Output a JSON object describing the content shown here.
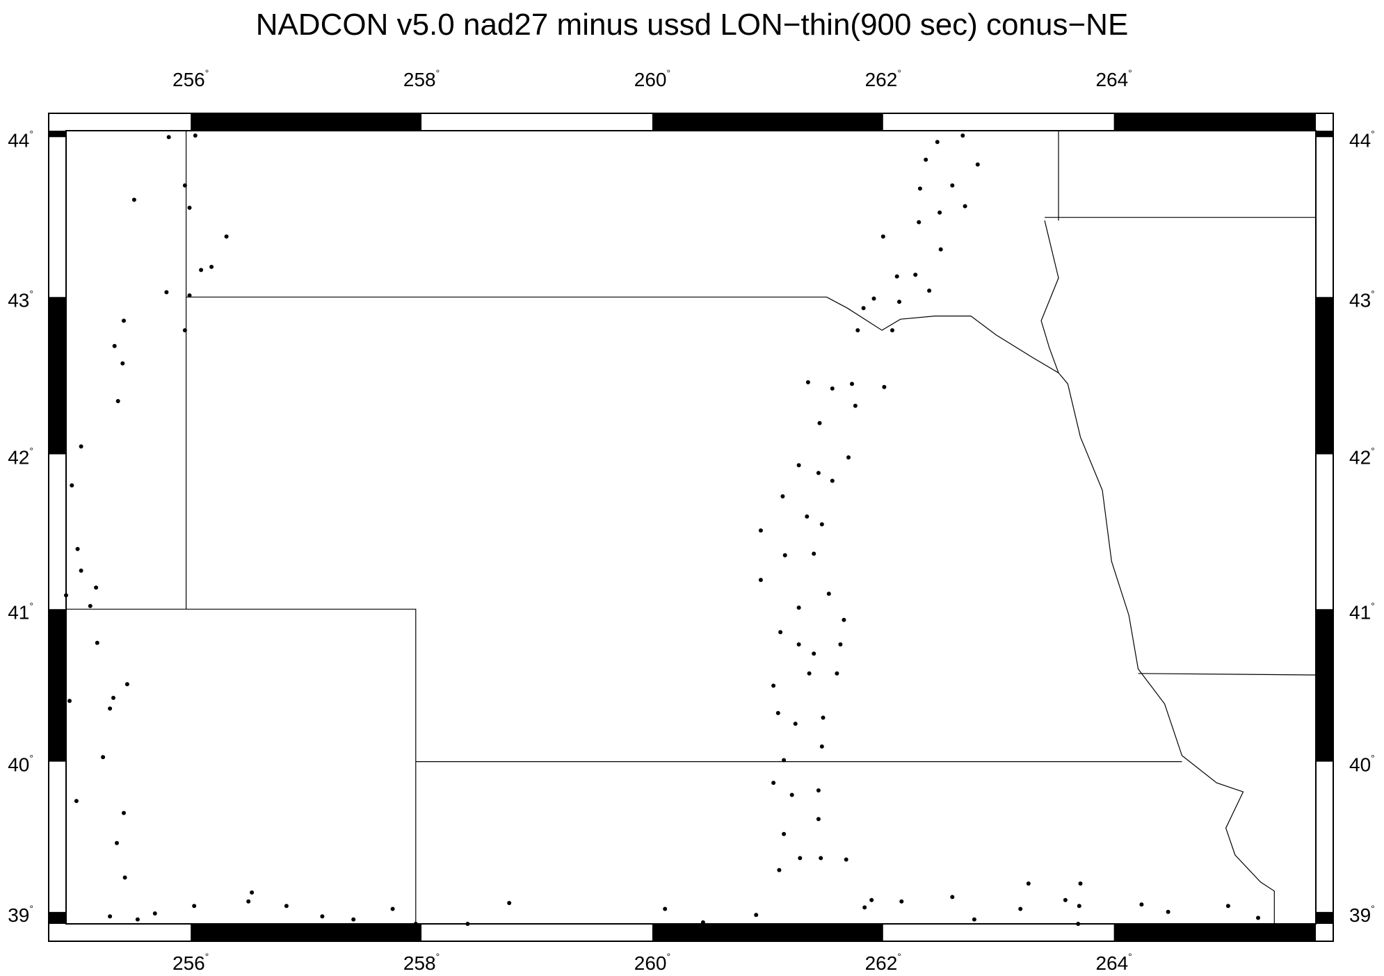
{
  "title": "NADCON v5.0 nad27 minus ussd LON−thin(900 sec) conus−NE",
  "map": {
    "projection": "mercator",
    "lon_range": [
      254.92,
      265.75
    ],
    "lat_range": [
      38.92,
      44.04
    ],
    "lon_ticks": [
      256,
      258,
      260,
      262,
      264
    ],
    "lon_tick_labels": [
      "256",
      "258",
      "260",
      "262",
      "264"
    ],
    "lat_ticks": [
      39,
      40,
      41,
      42,
      43,
      44
    ],
    "lat_tick_labels": [
      "39",
      "40",
      "41",
      "42",
      "43",
      "44"
    ],
    "degree_symbol": "°",
    "frame_lon_interval": 2,
    "frame_lat_interval": 1,
    "colors": {
      "points": "#000000",
      "boundaries": "#000000",
      "frame": "#000000"
    },
    "boundaries": [
      [
        [
          255.96,
          44.04
        ],
        [
          255.96,
          41.0
        ]
      ],
      [
        [
          255.96,
          43.0
        ],
        [
          261.51,
          43.0
        ]
      ],
      [
        [
          254.92,
          41.0
        ],
        [
          257.95,
          41.0
        ],
        [
          257.95,
          38.92
        ]
      ],
      [
        [
          257.95,
          40.0
        ],
        [
          264.59,
          40.0
        ]
      ],
      [
        [
          263.52,
          44.04
        ],
        [
          263.52,
          43.48
        ]
      ],
      [
        [
          263.4,
          43.5
        ],
        [
          265.75,
          43.5
        ]
      ],
      [
        [
          264.21,
          40.58
        ],
        [
          265.75,
          40.57
        ]
      ],
      [
        [
          263.52,
          42.52
        ],
        [
          263.44,
          42.68
        ],
        [
          263.37,
          42.85
        ],
        [
          263.52,
          43.12
        ],
        [
          263.4,
          43.48
        ]
      ],
      [
        [
          261.51,
          43.0
        ],
        [
          261.69,
          42.93
        ],
        [
          261.99,
          42.79
        ],
        [
          262.15,
          42.86
        ],
        [
          262.45,
          42.88
        ],
        [
          262.76,
          42.88
        ],
        [
          262.98,
          42.76
        ],
        [
          263.29,
          42.62
        ],
        [
          263.52,
          42.52
        ],
        [
          263.6,
          42.45
        ],
        [
          263.71,
          42.11
        ],
        [
          263.9,
          41.77
        ],
        [
          263.98,
          41.31
        ],
        [
          264.13,
          40.96
        ],
        [
          264.21,
          40.61
        ],
        [
          264.44,
          40.38
        ],
        [
          264.59,
          40.04
        ],
        [
          264.89,
          39.86
        ],
        [
          265.12,
          39.8
        ],
        [
          264.97,
          39.56
        ],
        [
          265.05,
          39.38
        ],
        [
          265.27,
          39.2
        ],
        [
          265.39,
          39.14
        ],
        [
          265.39,
          38.92
        ]
      ]
    ],
    "points": [
      [
        255.81,
        44.0
      ],
      [
        256.04,
        44.01
      ],
      [
        255.95,
        43.7
      ],
      [
        255.99,
        43.56
      ],
      [
        255.51,
        43.61
      ],
      [
        256.31,
        43.38
      ],
      [
        256.09,
        43.17
      ],
      [
        256.18,
        43.19
      ],
      [
        255.79,
        43.03
      ],
      [
        255.99,
        43.01
      ],
      [
        255.95,
        42.79
      ],
      [
        255.42,
        42.85
      ],
      [
        255.34,
        42.69
      ],
      [
        255.41,
        42.58
      ],
      [
        255.37,
        42.34
      ],
      [
        255.05,
        42.05
      ],
      [
        254.97,
        41.8
      ],
      [
        255.02,
        41.39
      ],
      [
        255.05,
        41.25
      ],
      [
        255.18,
        41.14
      ],
      [
        255.13,
        41.02
      ],
      [
        254.92,
        41.09
      ],
      [
        255.19,
        40.78
      ],
      [
        255.45,
        40.51
      ],
      [
        255.33,
        40.42
      ],
      [
        255.3,
        40.35
      ],
      [
        254.95,
        40.4
      ],
      [
        255.24,
        40.03
      ],
      [
        255.01,
        39.74
      ],
      [
        255.42,
        39.66
      ],
      [
        255.36,
        39.46
      ],
      [
        255.43,
        39.23
      ],
      [
        255.3,
        38.97
      ],
      [
        255.54,
        38.95
      ],
      [
        255.69,
        38.99
      ],
      [
        256.03,
        39.04
      ],
      [
        256.5,
        39.07
      ],
      [
        256.53,
        39.13
      ],
      [
        256.83,
        39.04
      ],
      [
        257.14,
        38.97
      ],
      [
        257.41,
        38.95
      ],
      [
        257.75,
        39.02
      ],
      [
        257.95,
        38.92
      ],
      [
        258.4,
        38.92
      ],
      [
        258.76,
        39.06
      ],
      [
        260.11,
        39.02
      ],
      [
        260.44,
        38.93
      ],
      [
        260.9,
        38.98
      ],
      [
        261.35,
        42.46
      ],
      [
        261.56,
        42.42
      ],
      [
        261.73,
        42.45
      ],
      [
        261.76,
        42.31
      ],
      [
        261.45,
        42.2
      ],
      [
        261.7,
        41.98
      ],
      [
        261.27,
        41.93
      ],
      [
        261.44,
        41.88
      ],
      [
        261.56,
        41.83
      ],
      [
        261.13,
        41.73
      ],
      [
        260.94,
        41.51
      ],
      [
        261.34,
        41.6
      ],
      [
        261.47,
        41.55
      ],
      [
        261.15,
        41.35
      ],
      [
        261.4,
        41.36
      ],
      [
        260.94,
        41.19
      ],
      [
        261.53,
        41.1
      ],
      [
        261.27,
        41.01
      ],
      [
        261.66,
        40.93
      ],
      [
        261.11,
        40.85
      ],
      [
        261.27,
        40.77
      ],
      [
        261.4,
        40.71
      ],
      [
        261.63,
        40.77
      ],
      [
        261.36,
        40.58
      ],
      [
        261.6,
        40.58
      ],
      [
        261.05,
        40.5
      ],
      [
        261.09,
        40.32
      ],
      [
        261.24,
        40.25
      ],
      [
        261.48,
        40.29
      ],
      [
        261.47,
        40.1
      ],
      [
        261.14,
        40.01
      ],
      [
        261.05,
        39.86
      ],
      [
        261.21,
        39.78
      ],
      [
        261.44,
        39.81
      ],
      [
        261.44,
        39.62
      ],
      [
        261.14,
        39.52
      ],
      [
        261.28,
        39.36
      ],
      [
        261.46,
        39.36
      ],
      [
        261.68,
        39.35
      ],
      [
        261.1,
        39.28
      ],
      [
        262.47,
        43.97
      ],
      [
        262.69,
        44.01
      ],
      [
        262.82,
        43.83
      ],
      [
        262.37,
        43.86
      ],
      [
        262.32,
        43.68
      ],
      [
        262.6,
        43.7
      ],
      [
        262.49,
        43.53
      ],
      [
        262.71,
        43.57
      ],
      [
        262.31,
        43.47
      ],
      [
        262.0,
        43.38
      ],
      [
        262.5,
        43.3
      ],
      [
        262.12,
        43.13
      ],
      [
        262.28,
        43.14
      ],
      [
        262.4,
        43.04
      ],
      [
        261.92,
        42.99
      ],
      [
        261.83,
        42.93
      ],
      [
        262.14,
        42.97
      ],
      [
        262.08,
        42.79
      ],
      [
        261.78,
        42.79
      ],
      [
        262.01,
        42.43
      ],
      [
        263.26,
        39.19
      ],
      [
        263.71,
        39.19
      ],
      [
        262.16,
        39.07
      ],
      [
        261.9,
        39.08
      ],
      [
        261.84,
        39.03
      ],
      [
        262.6,
        39.1
      ],
      [
        263.19,
        39.02
      ],
      [
        263.58,
        39.08
      ],
      [
        263.7,
        39.04
      ],
      [
        264.24,
        39.05
      ],
      [
        264.47,
        39.0
      ],
      [
        264.99,
        39.04
      ],
      [
        265.25,
        38.96
      ],
      [
        262.79,
        38.95
      ],
      [
        263.69,
        38.92
      ]
    ]
  }
}
